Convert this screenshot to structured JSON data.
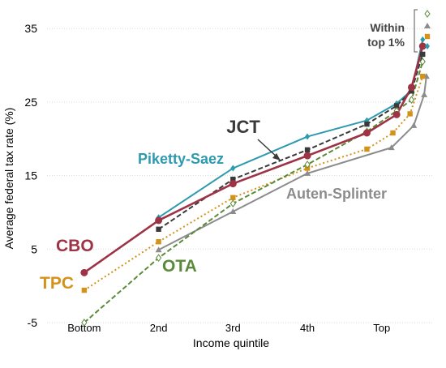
{
  "chart_data": {
    "type": "line",
    "title": "",
    "xlabel": "Income quintile",
    "ylabel": "Average federal tax rate (%)",
    "ylim": [
      -5,
      38
    ],
    "yticks": [
      -5,
      5,
      15,
      25,
      35
    ],
    "ytick_labels": [
      "-5",
      "5",
      "15",
      "25",
      "35"
    ],
    "categories": [
      "Bottom",
      "2nd",
      "3rd",
      "4th",
      "Top"
    ],
    "x_range": [
      0.5,
      5.7
    ],
    "grid": true,
    "bracket_label": "Within top 1%",
    "series": [
      {
        "name": "Piketty-Saez",
        "color": "#2E9AAE",
        "dash": "solid",
        "marker": "diamond",
        "points": [
          [
            2,
            9.3
          ],
          [
            3,
            16.0
          ],
          [
            4,
            20.3
          ],
          [
            4.8,
            22.5
          ],
          [
            5.2,
            24.8
          ],
          [
            5.4,
            26.6
          ],
          [
            5.55,
            33.5
          ]
        ]
      },
      {
        "name": "JCT",
        "color": "#3A3A3A",
        "dash": "dashed",
        "marker": "square",
        "points": [
          [
            2,
            7.7
          ],
          [
            3,
            14.5
          ],
          [
            4,
            18.5
          ],
          [
            4.8,
            22.0
          ],
          [
            5.2,
            24.5
          ],
          [
            5.4,
            26.5
          ],
          [
            5.55,
            31.5
          ]
        ]
      },
      {
        "name": "Auten-Splinter",
        "color": "#8C8C8C",
        "dash": "solid",
        "marker": "triangle",
        "points": [
          [
            2,
            4.9
          ],
          [
            3,
            10.1
          ],
          [
            4,
            15.3
          ],
          [
            5.13,
            18.8
          ],
          [
            5.43,
            21.8
          ],
          [
            5.57,
            26.0
          ],
          [
            5.6,
            28.5
          ]
        ]
      },
      {
        "name": "TPC",
        "color": "#D4921A",
        "dash": "dotted",
        "marker": "square",
        "points": [
          [
            1,
            -0.6
          ],
          [
            2,
            6.0
          ],
          [
            3,
            12.0
          ],
          [
            4,
            16.0
          ],
          [
            4.8,
            18.6
          ],
          [
            5.15,
            20.8
          ],
          [
            5.38,
            23.4
          ],
          [
            5.55,
            28.5
          ]
        ]
      },
      {
        "name": "OTA",
        "color": "#5A8A3A",
        "dash": "dashed",
        "marker": "open-diamond",
        "points": [
          [
            1,
            -5.0
          ],
          [
            2,
            3.8
          ],
          [
            3,
            11.2
          ],
          [
            4,
            16.5
          ],
          [
            4.8,
            21.0
          ],
          [
            5.2,
            23.8
          ],
          [
            5.4,
            25.3
          ],
          [
            5.55,
            30.5
          ]
        ]
      },
      {
        "name": "CBO",
        "color": "#9E3346",
        "dash": "solid",
        "marker": "circle",
        "points": [
          [
            1,
            1.8
          ],
          [
            2,
            8.9
          ],
          [
            3,
            13.9
          ],
          [
            4,
            17.7
          ],
          [
            4.8,
            20.8
          ],
          [
            5.2,
            23.3
          ],
          [
            5.4,
            27.0
          ],
          [
            5.55,
            32.6
          ]
        ]
      }
    ]
  }
}
